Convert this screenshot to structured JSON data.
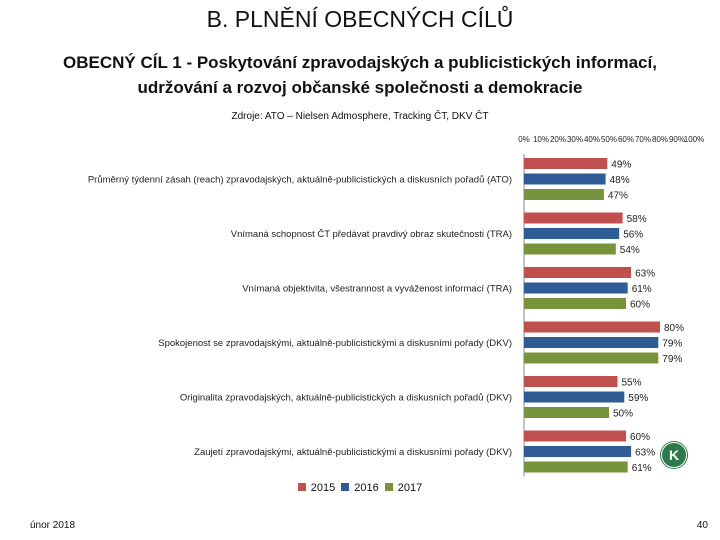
{
  "header": {
    "title": "B. PLNĚNÍ OBECNÝCH CÍLŮ",
    "subtitle": "OBECNÝ CÍL 1 - Poskytování zpravodajských a publicistických informací, udržování a rozvoj občanské společnosti a demokracie",
    "source": "Zdroje: ATO – Nielsen Admosphere, Tracking ČT, DKV ČT"
  },
  "footer": {
    "date": "únor 2018",
    "page": "40"
  },
  "badge": {
    "letter": "K",
    "color": "#2f7a4a"
  },
  "chart_data": {
    "type": "bar",
    "orientation": "horizontal",
    "title": "",
    "xlabel": "",
    "ylabel": "",
    "xlim": [
      0,
      100
    ],
    "ticks": [
      "0%",
      "10%",
      "20%",
      "30%",
      "40%",
      "50%",
      "60%",
      "70%",
      "80%",
      "90%",
      "100%"
    ],
    "tick_position": "top",
    "legend_position": "bottom",
    "grid": false,
    "categories": [
      "Průměrný týdenní zásah (reach) zpravodajských, aktuálně-publicistických a diskusních pořadů (ATO)",
      "Vnímaná schopnost ČT předávat pravdivý obraz skutečnosti (TRA)",
      "Vnímaná objektivita, všestrannost a vyváženost informací (TRA)",
      "Spokojenost se zpravodajskými, aktuálně-publicistickými a diskusními pořady (DKV)",
      "Originalita zpravodajských, aktuálně-publicistických a diskusních pořadů (DKV)",
      "Zaujetí zpravodajskými, aktuálně-publicistickými a diskusními pořady (DKV)"
    ],
    "series": [
      {
        "name": "2015",
        "color": "#c0504d",
        "values": [
          49,
          58,
          63,
          80,
          55,
          60
        ]
      },
      {
        "name": "2016",
        "color": "#2f5c94",
        "values": [
          48,
          56,
          61,
          79,
          59,
          63
        ]
      },
      {
        "name": "2017",
        "color": "#77933c",
        "values": [
          47,
          54,
          60,
          79,
          50,
          61
        ]
      }
    ]
  }
}
